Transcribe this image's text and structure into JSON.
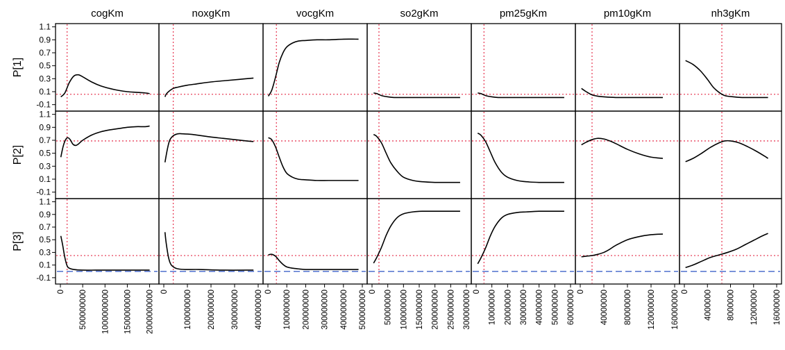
{
  "chart_data": {
    "type": "line",
    "layout": "grid",
    "columns": [
      {
        "name": "cogKm",
        "xlim": [
          0,
          2100000000
        ],
        "xticks": [
          0,
          500000000,
          1000000000,
          1500000000,
          2000000000
        ],
        "xtick_labels": [
          "0",
          "500000000",
          "1000000000",
          "1500000000",
          "2000000000"
        ],
        "ref_x": 150000000
      },
      {
        "name": "noxgKm",
        "xlim": [
          0,
          400000000
        ],
        "xticks": [
          0,
          100000000,
          200000000,
          300000000,
          400000000
        ],
        "xtick_labels": [
          "0",
          "100000000",
          "200000000",
          "300000000",
          "400000000"
        ],
        "ref_x": 40000000
      },
      {
        "name": "vocgKm",
        "xlim": [
          0,
          500000000
        ],
        "xticks": [
          0,
          100000000,
          200000000,
          300000000,
          400000000,
          500000000
        ],
        "xtick_labels": [
          "0",
          "100000000",
          "200000000",
          "300000000",
          "400000000",
          "500000000"
        ],
        "ref_x": 45000000
      },
      {
        "name": "so2gKm",
        "xlim": [
          0,
          300000000
        ],
        "xticks": [
          0,
          50000000,
          100000000,
          150000000,
          200000000,
          250000000,
          300000000
        ],
        "xtick_labels": [
          "0",
          "50000000",
          "100000000",
          "150000000",
          "200000000",
          "250000000",
          "300000000"
        ],
        "ref_x": 22000000
      },
      {
        "name": "pm25gKm",
        "xlim": [
          0,
          60000000
        ],
        "xticks": [
          0,
          10000000,
          20000000,
          30000000,
          40000000,
          50000000,
          60000000
        ],
        "xtick_labels": [
          "0",
          "10000000",
          "20000000",
          "30000000",
          "40000000",
          "50000000",
          "60000000"
        ],
        "ref_x": 5000000
      },
      {
        "name": "pm10gKm",
        "xlim": [
          0,
          160000000
        ],
        "xticks": [
          0,
          40000000,
          80000000,
          120000000,
          160000000
        ],
        "xtick_labels": [
          "0",
          "40000000",
          "80000000",
          "120000000",
          "160000000"
        ],
        "ref_x": 20000000
      },
      {
        "name": "nh3gKm",
        "xlim": [
          0,
          16000000
        ],
        "xticks": [
          0,
          4000000,
          8000000,
          12000000,
          16000000
        ],
        "xtick_labels": [
          "0",
          "4000000",
          "8000000",
          "12000000",
          "16000000"
        ],
        "ref_x": 6500000
      }
    ],
    "rows": [
      {
        "name": "P[1]",
        "ref_y": 0.06,
        "baseline": null
      },
      {
        "name": "P[2]",
        "ref_y": 0.69,
        "baseline": null
      },
      {
        "name": "P[3]",
        "ref_y": 0.25,
        "baseline": 0.0
      }
    ],
    "ylim": [
      -0.2,
      1.15
    ],
    "yticks": [
      -0.1,
      0.1,
      0.3,
      0.5,
      0.7,
      0.9,
      1.1
    ],
    "ytick_labels": [
      "-0.1",
      "0.1",
      "0.3",
      "0.5",
      "0.7",
      "0.9",
      "1.1"
    ],
    "colors": {
      "curve": "#000000",
      "reference": "#e8405a",
      "baseline": "#3f63c9",
      "frame": "#000000"
    },
    "series": [
      [
        {
          "x": [
            10000000,
            100000000,
            200000000,
            300000000,
            400000000,
            500000000,
            700000000,
            900000000,
            1100000000,
            1300000000,
            1500000000,
            1700000000,
            1900000000,
            2000000000
          ],
          "y": [
            0.02,
            0.08,
            0.24,
            0.34,
            0.36,
            0.33,
            0.25,
            0.19,
            0.15,
            0.12,
            0.1,
            0.09,
            0.08,
            0.07
          ]
        },
        {
          "x": [
            5000000,
            10000000,
            20000000,
            40000000,
            60000000,
            100000000,
            140000000,
            200000000,
            260000000,
            320000000,
            380000000
          ],
          "y": [
            0.02,
            0.06,
            0.1,
            0.15,
            0.17,
            0.2,
            0.22,
            0.25,
            0.27,
            0.29,
            0.31
          ]
        },
        {
          "x": [
            2000000,
            20000000,
            40000000,
            60000000,
            80000000,
            100000000,
            130000000,
            160000000,
            200000000,
            260000000,
            320000000,
            400000000,
            480000000
          ],
          "y": [
            0.03,
            0.12,
            0.32,
            0.55,
            0.7,
            0.79,
            0.85,
            0.88,
            0.89,
            0.9,
            0.9,
            0.91,
            0.91
          ]
        },
        {
          "x": [
            5000000,
            15000000,
            30000000,
            50000000,
            70000000,
            100000000,
            150000000,
            200000000,
            250000000,
            280000000
          ],
          "y": [
            0.08,
            0.07,
            0.04,
            0.02,
            0.01,
            0.01,
            0.01,
            0.01,
            0.01,
            0.01
          ]
        },
        {
          "x": [
            1000000,
            3000000,
            6000000,
            10000000,
            14000000,
            20000000,
            30000000,
            40000000,
            50000000,
            56000000
          ],
          "y": [
            0.08,
            0.07,
            0.04,
            0.02,
            0.01,
            0.01,
            0.01,
            0.01,
            0.01,
            0.01
          ]
        },
        {
          "x": [
            2000000,
            10000000,
            20000000,
            30000000,
            40000000,
            60000000,
            80000000,
            100000000,
            120000000,
            140000000
          ],
          "y": [
            0.15,
            0.1,
            0.05,
            0.03,
            0.02,
            0.01,
            0.01,
            0.01,
            0.01,
            0.01
          ]
        },
        {
          "x": [
            200000,
            1500000,
            2800000,
            4000000,
            5000000,
            6000000,
            7000000,
            8500000,
            10000000,
            11500000,
            13000000,
            14500000
          ],
          "y": [
            0.58,
            0.52,
            0.42,
            0.29,
            0.17,
            0.09,
            0.04,
            0.02,
            0.01,
            0.01,
            0.01,
            0.01
          ]
        }
      ],
      [
        {
          "x": [
            10000000,
            60000000,
            110000000,
            160000000,
            220000000,
            280000000,
            340000000,
            400000000,
            500000000,
            700000000,
            900000000,
            1100000000,
            1300000000,
            1500000000,
            1700000000,
            1900000000,
            2000000000
          ],
          "y": [
            0.44,
            0.6,
            0.7,
            0.74,
            0.71,
            0.64,
            0.62,
            0.64,
            0.7,
            0.78,
            0.83,
            0.86,
            0.88,
            0.9,
            0.91,
            0.91,
            0.92
          ]
        },
        {
          "x": [
            5000000,
            15000000,
            25000000,
            40000000,
            60000000,
            80000000,
            120000000,
            160000000,
            200000000,
            250000000,
            300000000,
            350000000,
            380000000
          ],
          "y": [
            0.36,
            0.56,
            0.7,
            0.77,
            0.8,
            0.8,
            0.79,
            0.77,
            0.75,
            0.73,
            0.71,
            0.69,
            0.68
          ]
        },
        {
          "x": [
            2000000,
            20000000,
            40000000,
            60000000,
            80000000,
            100000000,
            130000000,
            160000000,
            200000000,
            260000000,
            320000000,
            400000000,
            480000000
          ],
          "y": [
            0.74,
            0.71,
            0.6,
            0.44,
            0.29,
            0.19,
            0.13,
            0.1,
            0.09,
            0.08,
            0.08,
            0.08,
            0.08
          ]
        },
        {
          "x": [
            5000000,
            15000000,
            30000000,
            45000000,
            60000000,
            80000000,
            100000000,
            130000000,
            160000000,
            200000000,
            240000000,
            280000000
          ],
          "y": [
            0.79,
            0.76,
            0.66,
            0.5,
            0.35,
            0.22,
            0.13,
            0.08,
            0.06,
            0.05,
            0.05,
            0.05
          ]
        },
        {
          "x": [
            1000000,
            3000000,
            6000000,
            9000000,
            12000000,
            16000000,
            20000000,
            26000000,
            32000000,
            40000000,
            48000000,
            56000000
          ],
          "y": [
            0.81,
            0.78,
            0.68,
            0.52,
            0.36,
            0.21,
            0.13,
            0.08,
            0.06,
            0.05,
            0.05,
            0.05
          ]
        },
        {
          "x": [
            2000000,
            10000000,
            20000000,
            30000000,
            40000000,
            50000000,
            60000000,
            80000000,
            100000000,
            120000000,
            140000000
          ],
          "y": [
            0.63,
            0.67,
            0.71,
            0.73,
            0.72,
            0.69,
            0.65,
            0.56,
            0.49,
            0.44,
            0.42
          ]
        },
        {
          "x": [
            200000,
            1500000,
            3000000,
            4500000,
            6000000,
            7000000,
            8000000,
            9500000,
            11000000,
            12500000,
            14000000,
            14500000
          ],
          "y": [
            0.37,
            0.42,
            0.5,
            0.59,
            0.66,
            0.69,
            0.69,
            0.66,
            0.6,
            0.53,
            0.45,
            0.42
          ]
        }
      ],
      [
        {
          "x": [
            10000000,
            50000000,
            100000000,
            150000000,
            200000000,
            300000000,
            500000000,
            800000000,
            1100000000,
            1500000000,
            2000000000
          ],
          "y": [
            0.56,
            0.42,
            0.22,
            0.09,
            0.05,
            0.03,
            0.02,
            0.02,
            0.02,
            0.02,
            0.02
          ]
        },
        {
          "x": [
            5000000,
            10000000,
            20000000,
            30000000,
            45000000,
            60000000,
            90000000,
            150000000,
            250000000,
            380000000
          ],
          "y": [
            0.62,
            0.45,
            0.22,
            0.11,
            0.06,
            0.04,
            0.03,
            0.03,
            0.02,
            0.02
          ]
        },
        {
          "x": [
            2000000,
            20000000,
            40000000,
            60000000,
            80000000,
            100000000,
            130000000,
            160000000,
            200000000,
            280000000,
            400000000,
            480000000
          ],
          "y": [
            0.26,
            0.27,
            0.24,
            0.17,
            0.11,
            0.07,
            0.05,
            0.04,
            0.03,
            0.03,
            0.03,
            0.03
          ]
        },
        {
          "x": [
            5000000,
            15000000,
            30000000,
            45000000,
            60000000,
            80000000,
            100000000,
            130000000,
            160000000,
            200000000,
            240000000,
            280000000
          ],
          "y": [
            0.13,
            0.22,
            0.38,
            0.57,
            0.72,
            0.85,
            0.91,
            0.94,
            0.95,
            0.95,
            0.95,
            0.95
          ]
        },
        {
          "x": [
            1000000,
            3000000,
            6000000,
            9000000,
            12000000,
            16000000,
            20000000,
            26000000,
            32000000,
            40000000,
            48000000,
            56000000
          ],
          "y": [
            0.12,
            0.21,
            0.37,
            0.56,
            0.71,
            0.84,
            0.9,
            0.93,
            0.94,
            0.95,
            0.95,
            0.95
          ]
        },
        {
          "x": [
            2000000,
            10000000,
            20000000,
            30000000,
            40000000,
            50000000,
            60000000,
            80000000,
            100000000,
            120000000,
            140000000
          ],
          "y": [
            0.23,
            0.24,
            0.25,
            0.27,
            0.3,
            0.35,
            0.41,
            0.5,
            0.55,
            0.58,
            0.59
          ]
        },
        {
          "x": [
            200000,
            1500000,
            3000000,
            4500000,
            6000000,
            7500000,
            9000000,
            10500000,
            12000000,
            13500000,
            14500000
          ],
          "y": [
            0.06,
            0.1,
            0.16,
            0.22,
            0.26,
            0.3,
            0.35,
            0.42,
            0.49,
            0.56,
            0.6
          ]
        }
      ]
    ]
  }
}
